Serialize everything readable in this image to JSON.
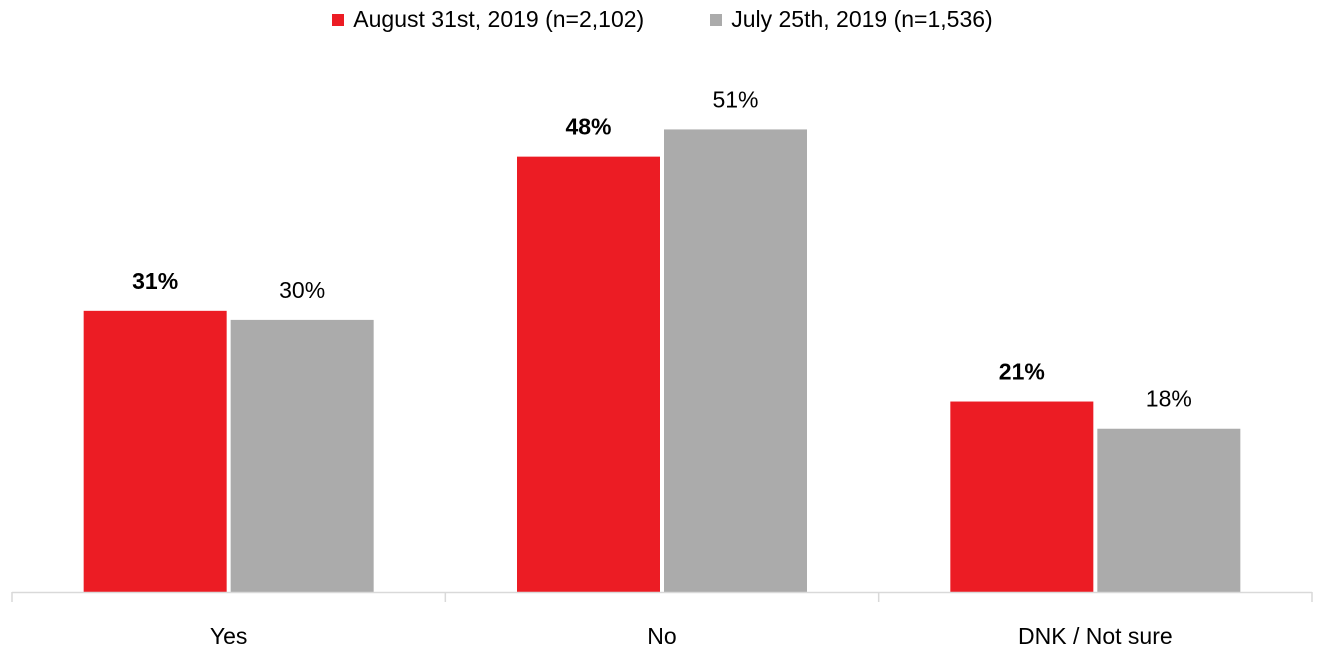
{
  "chart_data": {
    "type": "bar",
    "categories": [
      "Yes",
      "No",
      "DNK / Not sure"
    ],
    "series": [
      {
        "name": "August 31st, 2019 (n=2,102)",
        "values": [
          31,
          48,
          21
        ],
        "labels": [
          "31%",
          "48%",
          "21%"
        ],
        "color": "#ec1c24",
        "label_weight": "bold"
      },
      {
        "name": "July 25th, 2019 (n=1,536)",
        "values": [
          30,
          51,
          18
        ],
        "labels": [
          "30%",
          "51%",
          "18%"
        ],
        "color": "#ababab",
        "label_weight": "normal"
      }
    ],
    "ylim": [
      0,
      60
    ],
    "legend_position": "top",
    "grid": false,
    "axis_color": "#d9d9d9"
  }
}
